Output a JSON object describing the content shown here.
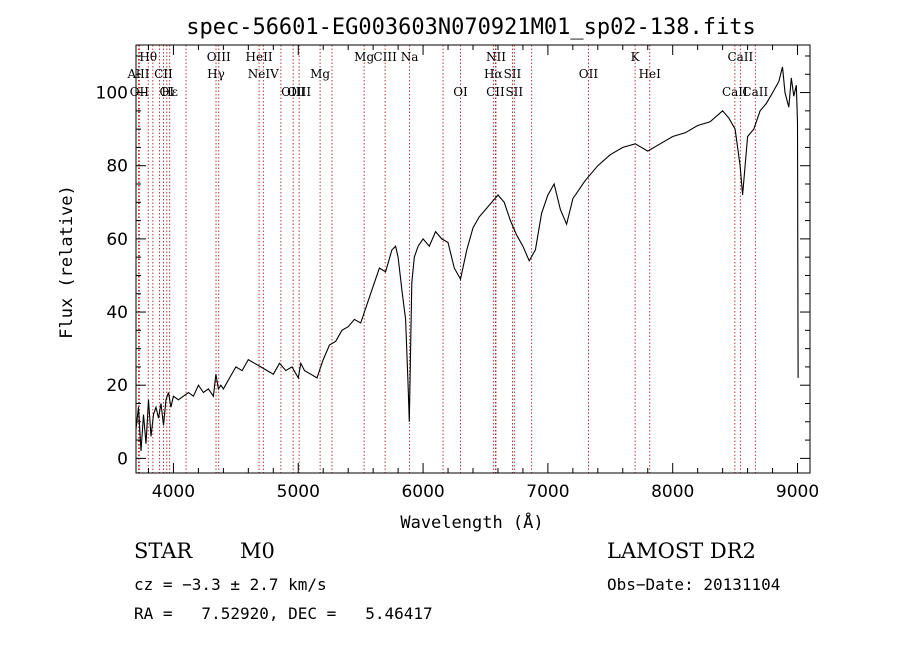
{
  "chart_data": {
    "type": "line",
    "title": "spec-56601-EG003603N070921M01_sp02-138.fits",
    "xlabel": "Wavelength (Å)",
    "ylabel": "Flux (relative)",
    "xlim": [
      3700,
      9100
    ],
    "ylim": [
      -4,
      113
    ],
    "x_ticks": [
      4000,
      5000,
      6000,
      7000,
      8000,
      9000
    ],
    "y_ticks": [
      0,
      20,
      40,
      60,
      80,
      100
    ],
    "series": [
      {
        "x": [
          3700,
          3720,
          3740,
          3760,
          3780,
          3800,
          3820,
          3840,
          3860,
          3880,
          3900,
          3920,
          3940,
          3960,
          3980,
          4000,
          4040,
          4080,
          4120,
          4160,
          4200,
          4240,
          4280,
          4320,
          4340,
          4360,
          4380,
          4400,
          4450,
          4500,
          4550,
          4600,
          4650,
          4700,
          4750,
          4800,
          4850,
          4900,
          4950,
          5000,
          5020,
          5050,
          5100,
          5150,
          5200,
          5250,
          5300,
          5350,
          5400,
          5450,
          5500,
          5550,
          5600,
          5650,
          5700,
          5750,
          5780,
          5800,
          5830,
          5860,
          5880,
          5890,
          5900,
          5910,
          5930,
          5960,
          6000,
          6050,
          6100,
          6150,
          6200,
          6250,
          6300,
          6350,
          6400,
          6450,
          6500,
          6550,
          6600,
          6650,
          6700,
          6750,
          6800,
          6850,
          6900,
          6950,
          7000,
          7050,
          7100,
          7150,
          7200,
          7300,
          7400,
          7500,
          7600,
          7700,
          7800,
          7900,
          8000,
          8100,
          8200,
          8300,
          8400,
          8450,
          8500,
          8540,
          8560,
          8600,
          8650,
          8700,
          8750,
          8800,
          8850,
          8880,
          8900,
          8930,
          8950,
          8970,
          8990,
          9000,
          9005
        ],
        "y": [
          8,
          14,
          2,
          12,
          4,
          16,
          6,
          12,
          14,
          11,
          15,
          9,
          16,
          18,
          14,
          17,
          16,
          17,
          18,
          17,
          20,
          18,
          19,
          17,
          23,
          19,
          20,
          19,
          22,
          25,
          24,
          27,
          26,
          25,
          24,
          23,
          26,
          24,
          25,
          22,
          26,
          24,
          23,
          22,
          27,
          31,
          32,
          35,
          36,
          38,
          37,
          42,
          47,
          52,
          51,
          57,
          58,
          55,
          46,
          38,
          20,
          10,
          30,
          48,
          55,
          58,
          60,
          58,
          62,
          60,
          59,
          52,
          49,
          57,
          63,
          66,
          68,
          70,
          72,
          70,
          65,
          61,
          58,
          54,
          57,
          67,
          72,
          75,
          68,
          64,
          71,
          76,
          80,
          83,
          85,
          86,
          84,
          86,
          88,
          89,
          91,
          92,
          95,
          93,
          90,
          80,
          72,
          88,
          90,
          95,
          97,
          100,
          103,
          107,
          100,
          96,
          104,
          99,
          102,
          92,
          22
        ]
      }
    ],
    "spectral_lines": [
      {
        "label": "Hθ",
        "wavelength": 3798,
        "row": 1
      },
      {
        "label": "AlII",
        "wavelength": 3720,
        "row": 2
      },
      {
        "label": "CII",
        "wavelength": 3920,
        "row": 2
      },
      {
        "label": "OIII",
        "wavelength": 4363,
        "row": 1
      },
      {
        "label": "Hγ",
        "wavelength": 4341,
        "row": 2
      },
      {
        "label": "HeII",
        "wavelength": 4686,
        "row": 1
      },
      {
        "label": "NeIV",
        "wavelength": 4720,
        "row": 2
      },
      {
        "label": "Mg",
        "wavelength": 5175,
        "row": 2
      },
      {
        "label": "Mg",
        "wavelength": 5528,
        "row": 1
      },
      {
        "label": "CIII",
        "wavelength": 5696,
        "row": 1
      },
      {
        "label": "Na",
        "wavelength": 5892,
        "row": 1
      },
      {
        "label": "NII",
        "wavelength": 6584,
        "row": 1
      },
      {
        "label": "Hα",
        "wavelength": 6563,
        "row": 2
      },
      {
        "label": "SII",
        "wavelength": 6716,
        "row": 2
      },
      {
        "label": "OII",
        "wavelength": 7325,
        "row": 2
      },
      {
        "label": "K",
        "wavelength": 7699,
        "row": 1
      },
      {
        "label": "HeI",
        "wavelength": 7816,
        "row": 2
      },
      {
        "label": "CaII",
        "wavelength": 8542,
        "row": 1
      },
      {
        "label": "OII",
        "wavelength": 3727,
        "row": 3
      },
      {
        "label": "Hε",
        "wavelength": 3970,
        "row": 3
      },
      {
        "label": "OI",
        "wavelength": 3947,
        "row": 3
      },
      {
        "label": "OIII",
        "wavelength": 4959,
        "row": 3
      },
      {
        "label": "OIII",
        "wavelength": 5007,
        "row": 3
      },
      {
        "label": "OI",
        "wavelength": 6300,
        "row": 3
      },
      {
        "label": "SII",
        "wavelength": 6731,
        "row": 3
      },
      {
        "label": "CII",
        "wavelength": 6580,
        "row": 3
      },
      {
        "label": "CaII",
        "wavelength": 8498,
        "row": 3
      },
      {
        "label": "CaII",
        "wavelength": 8662,
        "row": 3
      }
    ],
    "extra_line_wavelengths": [
      3835,
      3889,
      4101,
      4861,
      5270,
      6160,
      6870
    ]
  },
  "info": {
    "class_label": "STAR",
    "subclass": "M0",
    "survey": "LAMOST DR2",
    "cz": "cz = −3.3 ± 2.7 km/s",
    "obs_date": "Obs−Date: 20131104",
    "radec": "RA =   7.52920, DEC =   5.46417"
  },
  "colors": {
    "line_marker": "#b22222",
    "spectrum": "#000000",
    "frame": "#000000"
  }
}
